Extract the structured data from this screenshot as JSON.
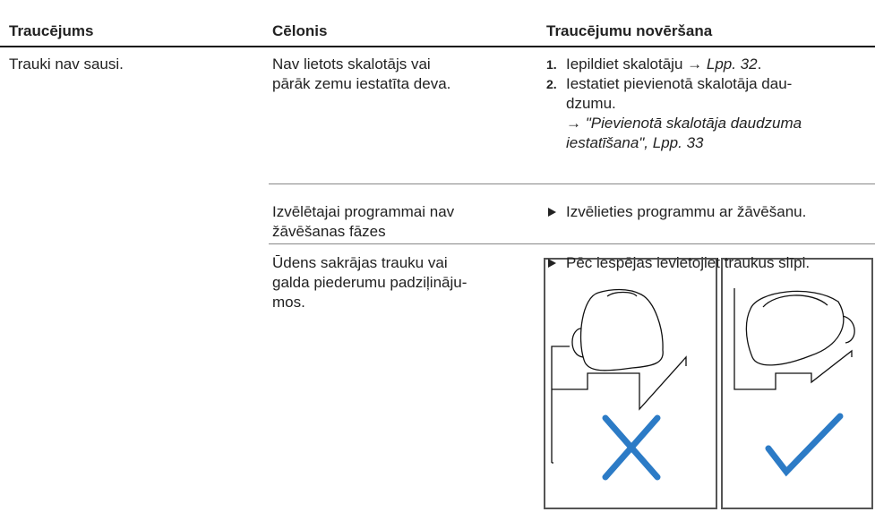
{
  "table": {
    "headers": [
      "Traucējums",
      "Cēlonis",
      "Traucējumu novēršana"
    ],
    "problem": "Trauki nav sausi.",
    "rows": [
      {
        "cause": [
          "Nav lietots skalotājs vai",
          "pārāk zemu iestatīta deva."
        ],
        "steps": [
          {
            "number": "1.",
            "lines": [
              [
                {
                  "text": "Iepildiet skalotāju → "
                },
                {
                  "text": "Lpp. 32",
                  "italic": true
                },
                {
                  "text": "."
                }
              ]
            ]
          },
          {
            "number": "2.",
            "lines": [
              [
                {
                  "text": "Iestatiet pievienotā skalotāja dau-"
                }
              ],
              [
                {
                  "text": "dzumu."
                }
              ],
              [
                {
                  "text": "→ "
                },
                {
                  "text": "\"Pievienotā skalotāja daudzuma",
                  "italic": true
                }
              ],
              [
                {
                  "text": "iestatīšana\", Lpp. 33",
                  "italic": true
                }
              ]
            ]
          }
        ]
      },
      {
        "cause": [
          "Izvēlētajai programmai nav",
          "žāvēšanas fāzes"
        ],
        "steps": [
          {
            "lines": [
              [
                {
                  "text": "Izvēlieties programmu ar žāvēšanu."
                }
              ]
            ]
          }
        ]
      },
      {
        "cause": [
          "Ūdens sakrājas trauku vai",
          "galda piederumu padziļināju-",
          "mos."
        ],
        "steps": [
          {
            "lines": [
              [
                {
                  "text": "Pēc iespējas ievietojiet traukus slīpi."
                }
              ]
            ]
          }
        ]
      }
    ]
  }
}
